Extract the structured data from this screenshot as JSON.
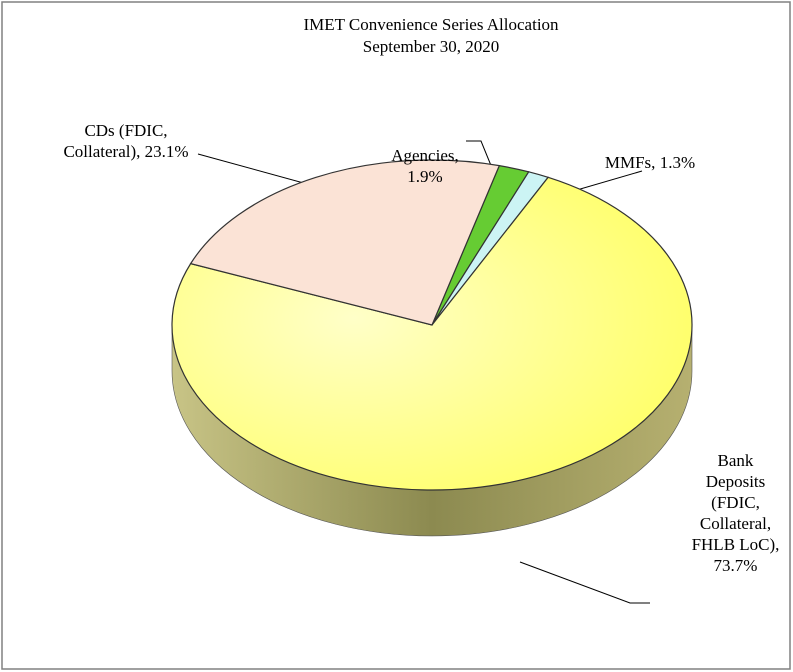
{
  "chart_data": {
    "type": "pie",
    "title": "IMET Convenience Series Allocation",
    "subtitle": "September 30, 2020",
    "categories": [
      "Agencies,",
      "MMFs,",
      "Bank Deposits (FDIC, Collateral, FHLB LoC),",
      "CDs (FDIC, Collateral),"
    ],
    "values": [
      1.9,
      1.3,
      73.7,
      23.1
    ],
    "value_labels": [
      "1.9%",
      "1.3%",
      "73.7%",
      "23.1%"
    ],
    "colors": [
      "#66cc33",
      "#ccf4f4",
      "#ffff8c",
      "#fbe3d6"
    ]
  }
}
